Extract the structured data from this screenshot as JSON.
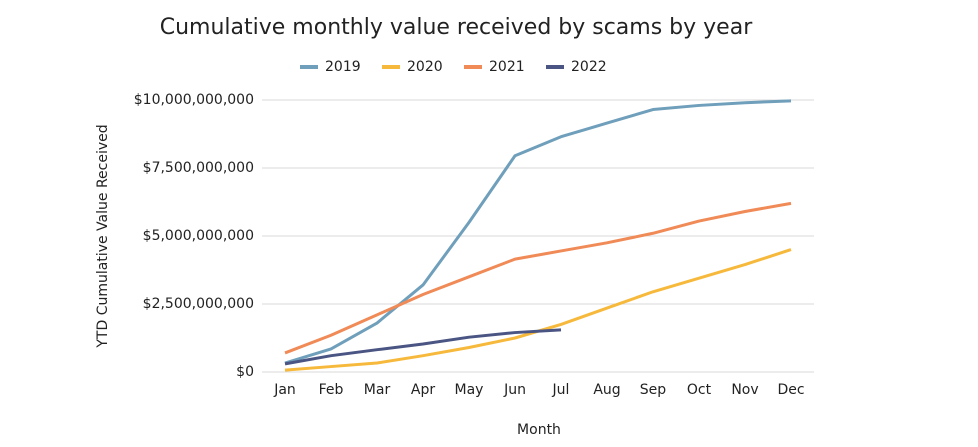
{
  "chart_data": {
    "type": "line",
    "title": "Cumulative monthly value received by scams by year",
    "x_label": "Month",
    "y_label": "YTD Cumulative Value Received",
    "categories": [
      "Jan",
      "Feb",
      "Mar",
      "Apr",
      "May",
      "Jun",
      "Jul",
      "Aug",
      "Sep",
      "Oct",
      "Nov",
      "Dec"
    ],
    "series": [
      {
        "name": "2019",
        "color": "#6f9fbb",
        "values": [
          330000000,
          850000000,
          1800000000,
          3200000000,
          5500000000,
          7950000000,
          8650000000,
          9150000000,
          9650000000,
          9800000000,
          9900000000,
          9970000000
        ]
      },
      {
        "name": "2020",
        "color": "#f6b93b",
        "values": [
          70000000,
          200000000,
          330000000,
          600000000,
          900000000,
          1250000000,
          1750000000,
          2350000000,
          2950000000,
          3450000000,
          3950000000,
          4500000000
        ]
      },
      {
        "name": "2021",
        "color": "#f08a57",
        "values": [
          700000000,
          1350000000,
          2100000000,
          2850000000,
          3500000000,
          4150000000,
          4450000000,
          4750000000,
          5100000000,
          5550000000,
          5900000000,
          6200000000
        ]
      },
      {
        "name": "2022",
        "color": "#4a5583",
        "values": [
          300000000,
          600000000,
          820000000,
          1030000000,
          1280000000,
          1450000000,
          1550000000,
          null,
          null,
          null,
          null,
          null
        ]
      }
    ],
    "ylim": [
      0,
      10000000000
    ],
    "yticks": [
      {
        "value": 0,
        "label": "$0"
      },
      {
        "value": 2500000000,
        "label": "$2,500,000,000"
      },
      {
        "value": 5000000000,
        "label": "$5,000,000,000"
      },
      {
        "value": 7500000000,
        "label": "$7,500,000,000"
      },
      {
        "value": 10000000000,
        "label": "$10,000,000,000"
      }
    ],
    "grid": true,
    "legend": "top"
  }
}
